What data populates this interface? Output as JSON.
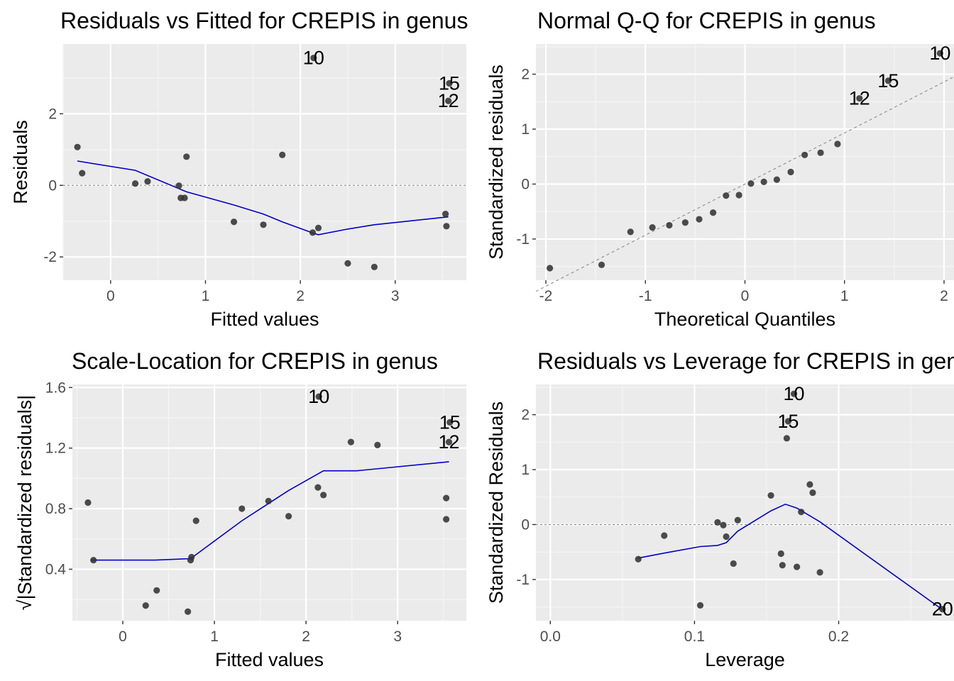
{
  "chart_data": [
    {
      "type": "scatter",
      "title": "Residuals vs Fitted for CREPIS in genus",
      "xlabel": "Fitted values",
      "ylabel": "Residuals",
      "xlim": [
        -0.5,
        3.75
      ],
      "ylim": [
        -2.65,
        3.95
      ],
      "xticks": [
        0,
        1,
        2,
        3
      ],
      "yticks": [
        -2,
        0,
        2
      ],
      "grid": true,
      "reference_line": {
        "y": 0,
        "style": "dotted"
      },
      "points": [
        {
          "x": -0.35,
          "y": 1.07
        },
        {
          "x": -0.3,
          "y": 0.34
        },
        {
          "x": 0.26,
          "y": 0.05
        },
        {
          "x": 0.39,
          "y": 0.11
        },
        {
          "x": 0.72,
          "y": -0.01
        },
        {
          "x": 0.74,
          "y": -0.35
        },
        {
          "x": 0.78,
          "y": -0.35
        },
        {
          "x": 0.8,
          "y": 0.8
        },
        {
          "x": 1.3,
          "y": -1.02
        },
        {
          "x": 1.61,
          "y": -1.1
        },
        {
          "x": 1.81,
          "y": 0.85
        },
        {
          "x": 2.13,
          "y": -1.32
        },
        {
          "x": 2.14,
          "y": 3.56,
          "label": "10"
        },
        {
          "x": 2.19,
          "y": -1.19
        },
        {
          "x": 2.5,
          "y": -2.18
        },
        {
          "x": 2.78,
          "y": -2.28
        },
        {
          "x": 3.53,
          "y": -0.8
        },
        {
          "x": 3.54,
          "y": -1.14
        },
        {
          "x": 3.56,
          "y": 2.36,
          "label": "12"
        },
        {
          "x": 3.57,
          "y": 2.85,
          "label": "15"
        }
      ],
      "smooth": {
        "color": "#0000cc",
        "x": [
          -0.35,
          0.26,
          0.8,
          1.3,
          1.61,
          1.81,
          2.13,
          2.19,
          2.5,
          2.78,
          3.56
        ],
        "y": [
          0.68,
          0.42,
          -0.18,
          -0.55,
          -0.8,
          -1.02,
          -1.33,
          -1.38,
          -1.22,
          -1.1,
          -0.88
        ]
      }
    },
    {
      "type": "scatter",
      "title": "Normal Q-Q for CREPIS in genus",
      "xlabel": "Theoretical Quantiles",
      "ylabel": "Standardized residuals",
      "xlim": [
        -2.1,
        2.1
      ],
      "ylim": [
        -1.75,
        2.55
      ],
      "xticks": [
        -2,
        -1,
        0,
        1,
        2
      ],
      "yticks": [
        -1,
        0,
        1,
        2
      ],
      "grid": true,
      "reference_line": {
        "slope": 0.93,
        "intercept": 0.0,
        "style": "dashed"
      },
      "points": [
        {
          "x": -1.96,
          "y": -1.53
        },
        {
          "x": -1.44,
          "y": -1.47
        },
        {
          "x": -1.15,
          "y": -0.87
        },
        {
          "x": -0.93,
          "y": -0.79
        },
        {
          "x": -0.76,
          "y": -0.75
        },
        {
          "x": -0.6,
          "y": -0.7
        },
        {
          "x": -0.46,
          "y": -0.64
        },
        {
          "x": -0.32,
          "y": -0.52
        },
        {
          "x": -0.19,
          "y": -0.21
        },
        {
          "x": -0.06,
          "y": -0.2
        },
        {
          "x": 0.06,
          "y": 0.01
        },
        {
          "x": 0.19,
          "y": 0.04
        },
        {
          "x": 0.32,
          "y": 0.08
        },
        {
          "x": 0.46,
          "y": 0.22
        },
        {
          "x": 0.6,
          "y": 0.53
        },
        {
          "x": 0.76,
          "y": 0.57
        },
        {
          "x": 0.93,
          "y": 0.73
        },
        {
          "x": 1.15,
          "y": 1.56,
          "label": "12"
        },
        {
          "x": 1.44,
          "y": 1.88,
          "label": "15"
        },
        {
          "x": 1.96,
          "y": 2.38,
          "label": "10"
        }
      ]
    },
    {
      "type": "scatter",
      "title": "Scale-Location for CREPIS in genus",
      "xlabel": "Fitted values",
      "ylabel": "√|Standardized residuals|",
      "xlim": [
        -0.55,
        3.75
      ],
      "ylim": [
        0.06,
        1.62
      ],
      "xticks": [
        0,
        1,
        2,
        3
      ],
      "yticks": [
        0.4,
        0.8,
        1.2,
        1.6
      ],
      "grid": true,
      "points": [
        {
          "x": -0.38,
          "y": 0.84
        },
        {
          "x": -0.32,
          "y": 0.46
        },
        {
          "x": 0.25,
          "y": 0.16
        },
        {
          "x": 0.37,
          "y": 0.26
        },
        {
          "x": 0.71,
          "y": 0.12
        },
        {
          "x": 0.74,
          "y": 0.46
        },
        {
          "x": 0.75,
          "y": 0.48
        },
        {
          "x": 0.8,
          "y": 0.72
        },
        {
          "x": 1.3,
          "y": 0.8
        },
        {
          "x": 1.59,
          "y": 0.85
        },
        {
          "x": 1.81,
          "y": 0.75
        },
        {
          "x": 2.13,
          "y": 0.94
        },
        {
          "x": 2.14,
          "y": 1.54,
          "label": "10"
        },
        {
          "x": 2.19,
          "y": 0.89
        },
        {
          "x": 2.49,
          "y": 1.24
        },
        {
          "x": 2.78,
          "y": 1.22
        },
        {
          "x": 3.53,
          "y": 0.87
        },
        {
          "x": 3.53,
          "y": 0.73
        },
        {
          "x": 3.56,
          "y": 1.24,
          "label": "12"
        },
        {
          "x": 3.57,
          "y": 1.37,
          "label": "15"
        }
      ],
      "smooth": {
        "color": "#0000cc",
        "x": [
          -0.35,
          0.35,
          0.74,
          1.3,
          1.81,
          2.19,
          2.55,
          3.56
        ],
        "y": [
          0.46,
          0.46,
          0.47,
          0.72,
          0.92,
          1.05,
          1.05,
          1.11
        ]
      }
    },
    {
      "type": "scatter",
      "title": "Residuals vs Leverage for CREPIS in genus",
      "xlabel": "Leverage",
      "ylabel": "Standardized Residuals",
      "xlim": [
        -0.01,
        0.28
      ],
      "ylim": [
        -1.75,
        2.55
      ],
      "xticks": [
        0.0,
        0.1,
        0.2
      ],
      "xtick_labels": [
        "0.0",
        "0.1",
        "0.2"
      ],
      "yticks": [
        -1,
        0,
        1,
        2
      ],
      "grid": true,
      "reference_line": {
        "y": 0,
        "style": "dotted"
      },
      "points": [
        {
          "x": 0.061,
          "y": -0.63
        },
        {
          "x": 0.079,
          "y": -0.2
        },
        {
          "x": 0.104,
          "y": -1.47
        },
        {
          "x": 0.116,
          "y": 0.04
        },
        {
          "x": 0.12,
          "y": -0.01
        },
        {
          "x": 0.122,
          "y": -0.22
        },
        {
          "x": 0.127,
          "y": -0.71
        },
        {
          "x": 0.13,
          "y": 0.08
        },
        {
          "x": 0.153,
          "y": 0.53
        },
        {
          "x": 0.16,
          "y": -0.53
        },
        {
          "x": 0.161,
          "y": -0.74
        },
        {
          "x": 0.164,
          "y": 1.57
        },
        {
          "x": 0.165,
          "y": 1.88,
          "label": "15"
        },
        {
          "x": 0.169,
          "y": 2.38,
          "label": "10"
        },
        {
          "x": 0.171,
          "y": -0.77
        },
        {
          "x": 0.174,
          "y": 0.23
        },
        {
          "x": 0.18,
          "y": 0.73
        },
        {
          "x": 0.182,
          "y": 0.58
        },
        {
          "x": 0.187,
          "y": -0.87
        },
        {
          "x": 0.272,
          "y": -1.54,
          "label": "20"
        }
      ],
      "smooth": {
        "color": "#0000cc",
        "x": [
          0.061,
          0.079,
          0.104,
          0.116,
          0.122,
          0.13,
          0.153,
          0.163,
          0.171,
          0.187,
          0.272
        ],
        "y": [
          -0.61,
          -0.52,
          -0.4,
          -0.38,
          -0.33,
          -0.12,
          0.25,
          0.37,
          0.3,
          0.05,
          -1.55
        ]
      }
    }
  ]
}
